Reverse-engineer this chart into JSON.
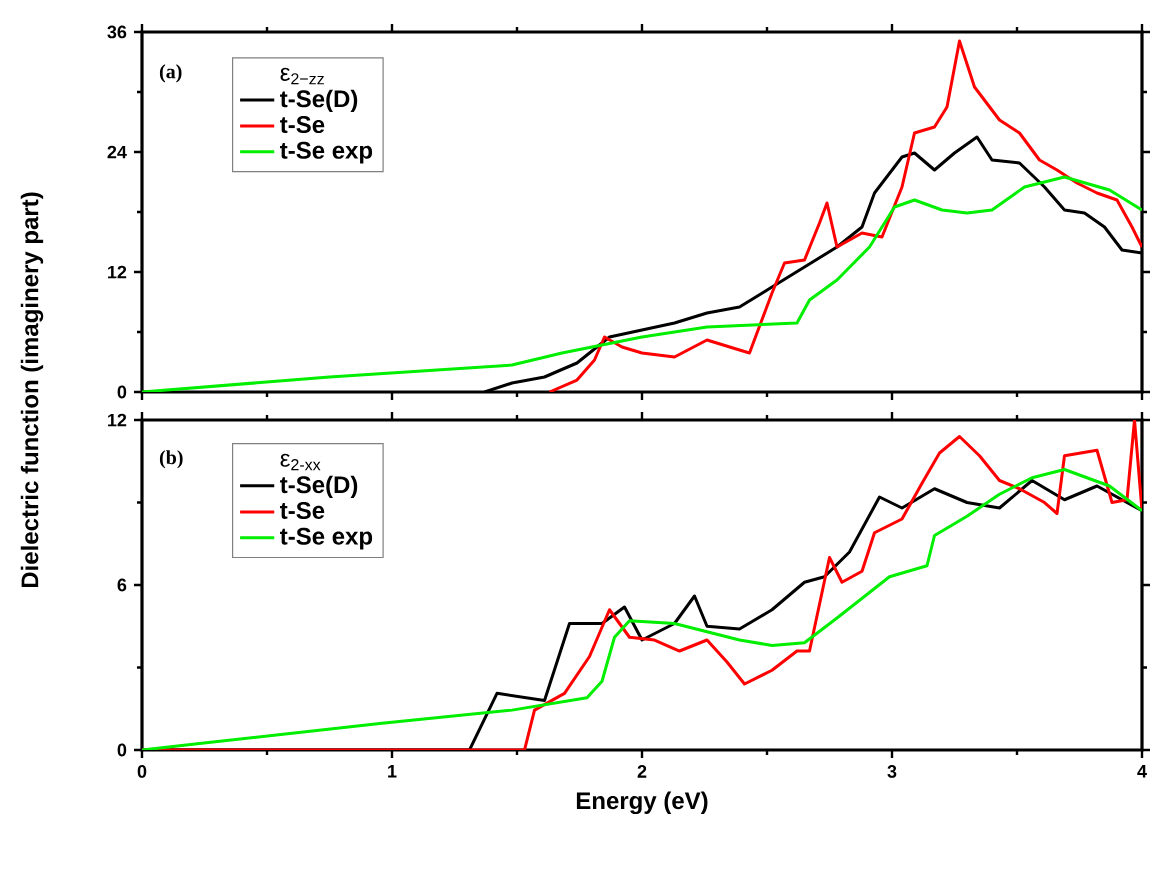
{
  "chart_data": [
    {
      "type": "line",
      "legend_title": "ε$_{2−zz}$",
      "ylabel": "Dielectric function (imaginery part)",
      "annotations": [
        "(a)"
      ],
      "xlim": [
        0,
        4
      ],
      "xticks": [
        0,
        1,
        2,
        3,
        4
      ],
      "ylim": [
        0,
        36
      ],
      "yticks": [
        0,
        12,
        24,
        36
      ],
      "tick_labels": "y",
      "legend": "top left",
      "series": [
        {
          "name": "t-Se(D)",
          "color": "#000000",
          "x": [
            1.37,
            1.48,
            1.61,
            1.74,
            1.87,
            2.0,
            2.13,
            2.26,
            2.39,
            2.52,
            2.65,
            2.78,
            2.88,
            2.93,
            3.04,
            3.09,
            3.17,
            3.25,
            3.34,
            3.4,
            3.51,
            3.61,
            3.69,
            3.77,
            3.85,
            3.92,
            4.0
          ],
          "values": [
            0,
            0.9,
            1.5,
            2.9,
            5.5,
            6.2,
            6.9,
            7.9,
            8.5,
            10.5,
            12.5,
            14.5,
            16.5,
            19.9,
            23.5,
            23.9,
            22.2,
            23.9,
            25.5,
            23.2,
            22.9,
            20.5,
            18.2,
            17.9,
            16.5,
            14.2,
            13.9
          ]
        },
        {
          "name": "t-Se",
          "color": "#ff0000",
          "x": [
            1.63,
            1.74,
            1.81,
            1.85,
            1.92,
            2.0,
            2.13,
            2.26,
            2.39,
            2.43,
            2.52,
            2.57,
            2.65,
            2.71,
            2.74,
            2.78,
            2.88,
            2.96,
            3.04,
            3.09,
            3.17,
            3.22,
            3.27,
            3.33,
            3.43,
            3.51,
            3.59,
            3.66,
            3.74,
            3.82,
            3.9,
            3.96,
            4.0
          ],
          "values": [
            0,
            1.2,
            3.2,
            5.5,
            4.5,
            3.9,
            3.5,
            5.2,
            4.2,
            3.9,
            9.9,
            12.9,
            13.2,
            16.9,
            18.9,
            14.5,
            15.9,
            15.5,
            20.5,
            25.9,
            26.5,
            28.5,
            35.1,
            30.5,
            27.2,
            25.9,
            23.2,
            22.2,
            20.9,
            19.9,
            19.2,
            16.5,
            14.5
          ]
        },
        {
          "name": "t-Se exp",
          "color": "#00ee00",
          "x": [
            0,
            0.75,
            1.48,
            1.68,
            2.0,
            2.26,
            2.62,
            2.67,
            2.78,
            2.91,
            3.01,
            3.09,
            3.2,
            3.3,
            3.4,
            3.53,
            3.69,
            3.87,
            4.0
          ],
          "values": [
            0,
            1.5,
            2.7,
            3.9,
            5.5,
            6.5,
            6.9,
            9.2,
            11.2,
            14.5,
            18.5,
            19.2,
            18.2,
            17.9,
            18.2,
            20.5,
            21.5,
            20.2,
            18.2
          ]
        }
      ]
    },
    {
      "type": "line",
      "legend_title": "ε$_{2-xx}$",
      "xlabel": "Energy (eV)",
      "annotations": [
        "(b)"
      ],
      "xlim": [
        0,
        4
      ],
      "xticks": [
        0,
        1,
        2,
        3,
        4
      ],
      "ylim": [
        0,
        12
      ],
      "yticks": [
        0,
        6,
        12
      ],
      "legend": "top left",
      "series": [
        {
          "name": "t-Se(D)",
          "color": "#000000",
          "x": [
            0,
            1.31,
            1.42,
            1.61,
            1.71,
            1.84,
            1.93,
            2.0,
            2.13,
            2.21,
            2.26,
            2.39,
            2.52,
            2.65,
            2.73,
            2.83,
            2.95,
            3.04,
            3.17,
            3.3,
            3.43,
            3.56,
            3.69,
            3.82,
            4.0
          ],
          "values": [
            0,
            0,
            2.06,
            1.8,
            4.6,
            4.6,
            5.2,
            4.0,
            4.6,
            5.6,
            4.5,
            4.4,
            5.1,
            6.1,
            6.3,
            7.2,
            9.2,
            8.8,
            9.5,
            9.0,
            8.8,
            9.8,
            9.1,
            9.6,
            8.7
          ]
        },
        {
          "name": "t-Se",
          "color": "#ff0000",
          "x": [
            0,
            1.53,
            1.57,
            1.69,
            1.79,
            1.87,
            1.95,
            2.05,
            2.15,
            2.26,
            2.34,
            2.41,
            2.52,
            2.62,
            2.67,
            2.75,
            2.8,
            2.88,
            2.93,
            3.04,
            3.12,
            3.19,
            3.27,
            3.35,
            3.43,
            3.51,
            3.61,
            3.66,
            3.69,
            3.82,
            3.88,
            3.94,
            3.97,
            4.0
          ],
          "values": [
            0,
            0,
            1.45,
            2.06,
            3.4,
            5.1,
            4.1,
            4.0,
            3.6,
            4.0,
            3.2,
            2.4,
            2.9,
            3.6,
            3.6,
            7.0,
            6.1,
            6.5,
            7.9,
            8.4,
            9.7,
            10.8,
            11.4,
            10.7,
            9.8,
            9.5,
            9.0,
            8.6,
            10.7,
            10.9,
            9.0,
            9.1,
            12,
            8.7
          ]
        },
        {
          "name": "t-Se exp",
          "color": "#00ee00",
          "x": [
            0,
            0.23,
            0.96,
            1.48,
            1.78,
            1.84,
            1.89,
            1.95,
            2.13,
            2.39,
            2.52,
            2.65,
            2.78,
            2.99,
            3.14,
            3.17,
            3.3,
            3.43,
            3.56,
            3.69,
            3.87,
            4.0
          ],
          "values": [
            0,
            0.24,
            0.97,
            1.45,
            1.9,
            2.5,
            4.1,
            4.7,
            4.6,
            4.0,
            3.8,
            3.9,
            4.8,
            6.3,
            6.7,
            7.8,
            8.5,
            9.3,
            9.9,
            10.2,
            9.6,
            8.7
          ]
        }
      ]
    }
  ]
}
